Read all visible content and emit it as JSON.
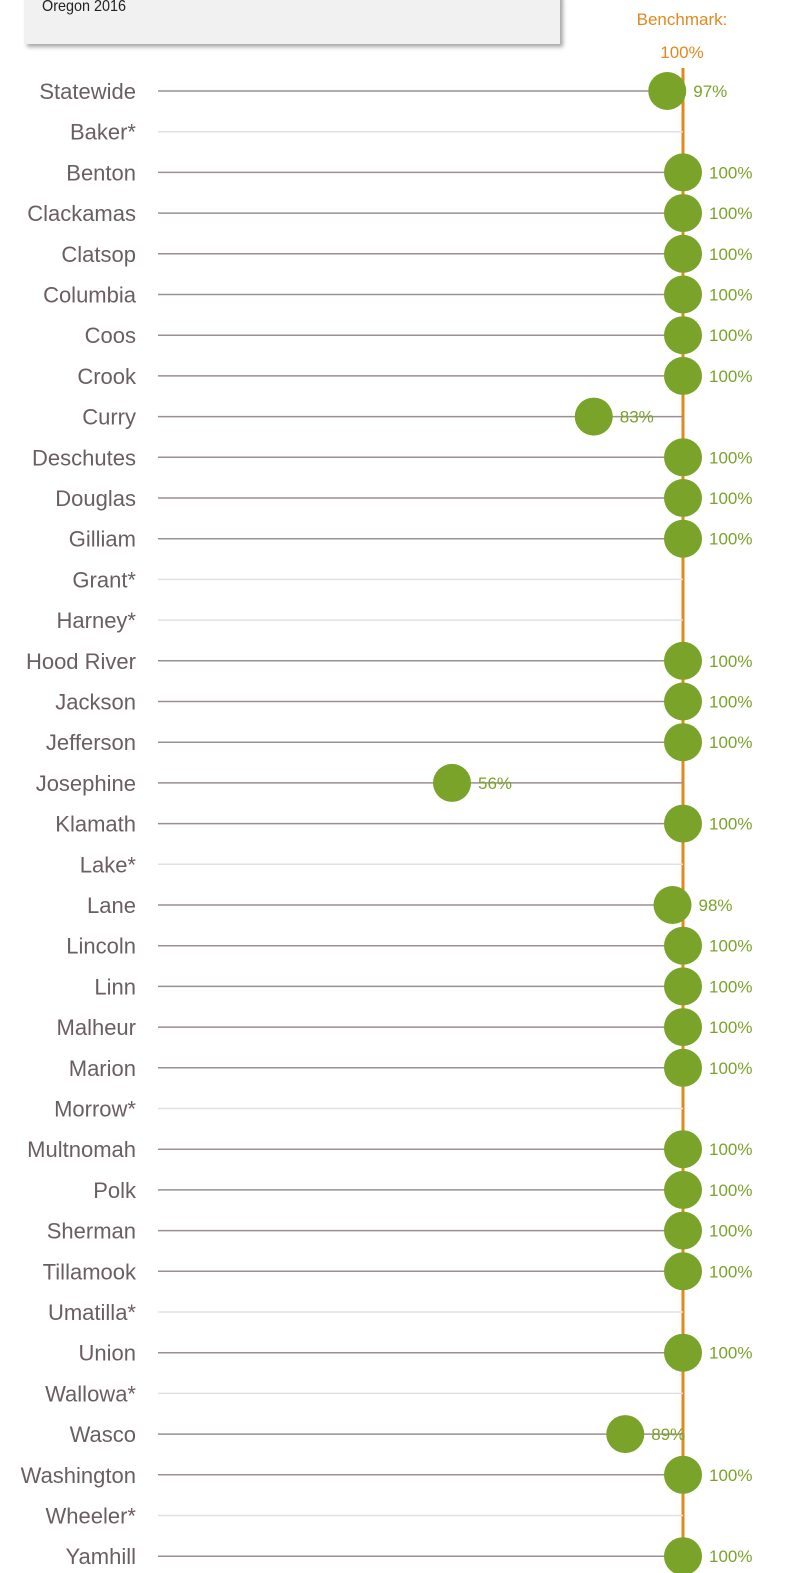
{
  "header": {
    "title": "Oregon 2016"
  },
  "colors": {
    "benchmark": "#e08a1e",
    "point": "#7aa32a",
    "line": "#9a8f93",
    "empty_line": "#e3e0e1",
    "label": "#6b5e62"
  },
  "chart_data": {
    "type": "scatter",
    "xlim": [
      0,
      100
    ],
    "benchmark": {
      "label": "Benchmark:",
      "value": 100,
      "value_label": "100%"
    },
    "categories": [
      "Statewide",
      "Baker*",
      "Benton",
      "Clackamas",
      "Clatsop",
      "Columbia",
      "Coos",
      "Crook",
      "Curry",
      "Deschutes",
      "Douglas",
      "Gilliam",
      "Grant*",
      "Harney*",
      "Hood River",
      "Jackson",
      "Jefferson",
      "Josephine",
      "Klamath",
      "Lake*",
      "Lane",
      "Lincoln",
      "Linn",
      "Malheur",
      "Marion",
      "Morrow*",
      "Multnomah",
      "Polk",
      "Sherman",
      "Tillamook",
      "Umatilla*",
      "Union",
      "Wallowa*",
      "Wasco",
      "Washington",
      "Wheeler*",
      "Yamhill"
    ],
    "values": [
      97,
      null,
      100,
      100,
      100,
      100,
      100,
      100,
      83,
      100,
      100,
      100,
      null,
      null,
      100,
      100,
      100,
      56,
      100,
      null,
      98,
      100,
      100,
      100,
      100,
      null,
      100,
      100,
      100,
      100,
      null,
      100,
      null,
      89,
      100,
      null,
      100
    ],
    "value_labels": [
      "97%",
      "",
      "100%",
      "100%",
      "100%",
      "100%",
      "100%",
      "100%",
      "83%",
      "100%",
      "100%",
      "100%",
      "",
      "",
      "100%",
      "100%",
      "100%",
      "56%",
      "100%",
      "",
      "98%",
      "100%",
      "100%",
      "100%",
      "100%",
      "",
      "100%",
      "100%",
      "100%",
      "100%",
      "",
      "100%",
      "",
      "89%",
      "100%",
      "",
      "100%"
    ]
  }
}
